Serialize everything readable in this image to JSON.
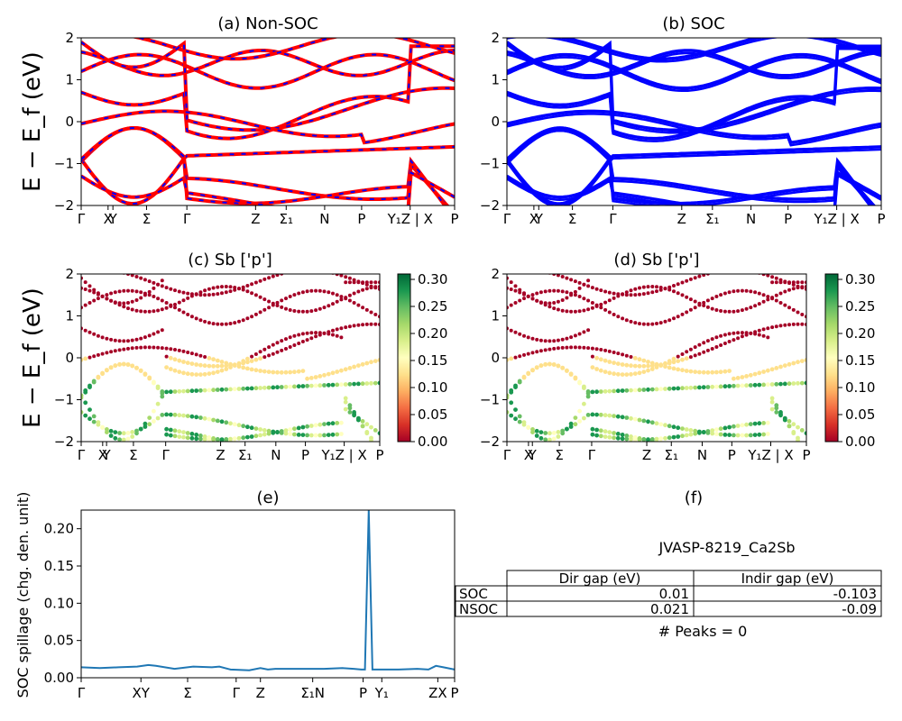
{
  "chart_data": [
    {
      "type": "line",
      "title": "(a) Non-SOC",
      "ylabel": "E − E_f (eV)",
      "ylim": [
        -2,
        2
      ],
      "yticks": [
        "−2",
        "−1",
        "0",
        "1",
        "2"
      ],
      "xticks": [
        "Γ",
        "X",
        "Y",
        "Σ",
        "Γ",
        "Z",
        "Σ₁",
        "N",
        "P",
        "Y₁Z | X",
        "P"
      ],
      "series": [
        {
          "color": "#ff0000",
          "dash": "solid"
        },
        {
          "color": "#0000ff",
          "dash": "dashed"
        }
      ]
    },
    {
      "type": "line",
      "title": "(b) SOC",
      "ylim": [
        -2,
        2
      ],
      "yticks": [
        "−2",
        "−1",
        "0",
        "1",
        "2"
      ],
      "xticks": [
        "Γ",
        "X",
        "Y",
        "Σ",
        "Γ",
        "Z",
        "Σ₁",
        "N",
        "P",
        "Y₁Z | X",
        "P"
      ],
      "series": [
        {
          "color": "#0000ff"
        }
      ]
    },
    {
      "type": "scatter",
      "title": "(c)  Sb ['p']",
      "ylabel": "E − E_f (eV)",
      "ylim": [
        -2,
        2
      ],
      "yticks": [
        "−2",
        "−1",
        "0",
        "1",
        "2"
      ],
      "xticks": [
        "Γ",
        "X",
        "Y",
        "Σ",
        "Γ",
        "Z",
        "Σ₁",
        "N",
        "P",
        "Y₁Z | X",
        "P"
      ],
      "colorbar": {
        "min": 0.0,
        "max": 0.3,
        "ticks": [
          "0.00",
          "0.05",
          "0.10",
          "0.15",
          "0.20",
          "0.25",
          "0.30"
        ],
        "cmap": "RdYlGn"
      }
    },
    {
      "type": "scatter",
      "title": "(d) Sb ['p']",
      "ylim": [
        -2,
        2
      ],
      "yticks": [
        "−2",
        "−1",
        "0",
        "1",
        "2"
      ],
      "xticks": [
        "Γ",
        "X",
        "Y",
        "Σ",
        "Γ",
        "Z",
        "Σ₁",
        "N",
        "P",
        "Y₁Z | X",
        "P"
      ],
      "colorbar": {
        "min": 0.0,
        "max": 0.3,
        "ticks": [
          "0.00",
          "0.05",
          "0.10",
          "0.15",
          "0.20",
          "0.25",
          "0.30"
        ],
        "cmap": "RdYlGn"
      }
    },
    {
      "type": "line",
      "title": "(e)",
      "ylabel": "SOC spillage (chg. den. unit)",
      "ylim": [
        0,
        0.225
      ],
      "yticks": [
        "0.00",
        "0.05",
        "0.10",
        "0.15",
        "0.20"
      ],
      "xticks": [
        "Γ",
        "XY",
        "Σ",
        "Γ",
        "Z",
        "Σ₁N",
        "P",
        "Y₁",
        "ZX",
        "P"
      ],
      "series": [
        {
          "color": "#1f77b4",
          "x": [
            0,
            0.05,
            0.1,
            0.15,
            0.18,
            0.2,
            0.25,
            0.3,
            0.35,
            0.37,
            0.4,
            0.45,
            0.48,
            0.5,
            0.52,
            0.55,
            0.6,
            0.65,
            0.7,
            0.73,
            0.75,
            0.76,
            0.77,
            0.78,
            0.8,
            0.85,
            0.9,
            0.93,
            0.95,
            0.97,
            1.0
          ],
          "y": [
            0.014,
            0.013,
            0.014,
            0.015,
            0.017,
            0.016,
            0.012,
            0.015,
            0.014,
            0.015,
            0.011,
            0.01,
            0.013,
            0.011,
            0.012,
            0.012,
            0.012,
            0.012,
            0.013,
            0.012,
            0.011,
            0.011,
            0.225,
            0.011,
            0.011,
            0.011,
            0.012,
            0.011,
            0.016,
            0.014,
            0.011
          ]
        }
      ]
    }
  ],
  "info_panel": {
    "title": "(f)",
    "subtitle": "JVASP-8219_Ca2Sb",
    "table": {
      "headers": [
        "Dir gap (eV)",
        "Indir gap (eV)"
      ],
      "rows": [
        {
          "label": "SOC",
          "dir": "0.01",
          "indir": "-0.103"
        },
        {
          "label": "NSOC",
          "dir": "0.021",
          "indir": "-0.09"
        }
      ]
    },
    "peaks": "# Peaks = 0"
  },
  "colors": {
    "nonsoc_red": "#ff0000",
    "nonsoc_blue": "#0000ff",
    "soc_blue": "#0000ff",
    "spillage": "#1f77b4"
  }
}
